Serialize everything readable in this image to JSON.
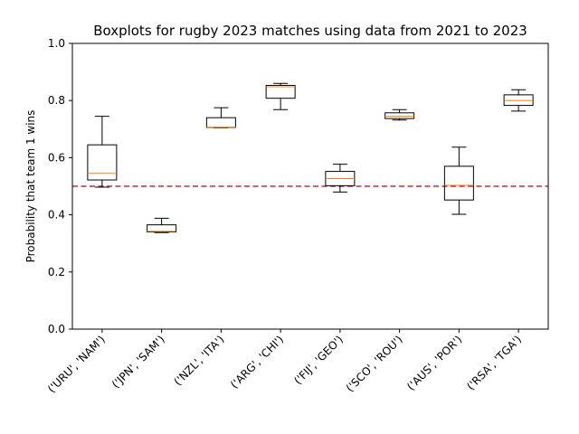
{
  "chart_data": {
    "type": "boxplot",
    "title": "Boxplots for rugby 2023 matches using data from 2021 to 2023",
    "xlabel": "",
    "ylabel": "Probability that team 1 wins",
    "ylim": [
      0.0,
      1.0
    ],
    "yticks": [
      "0.0",
      "0.2",
      "0.4",
      "0.6",
      "0.8",
      "1.0"
    ],
    "categories": [
      "('URU', 'NAM')",
      "('JPN', 'SAM')",
      "('NZL', 'ITA')",
      "('ARG', 'CHI')",
      "('FIJ', 'GEO')",
      "('SCO', 'ROU')",
      "('AUS', 'POR')",
      "('RSA', 'TGA')"
    ],
    "boxes": [
      {
        "whisker_low": 0.497,
        "q1": 0.522,
        "median": 0.545,
        "q3": 0.645,
        "whisker_high": 0.745
      },
      {
        "whisker_low": 0.338,
        "q1": 0.34,
        "median": 0.342,
        "q3": 0.365,
        "whisker_high": 0.388
      },
      {
        "whisker_low": 0.705,
        "q1": 0.706,
        "median": 0.707,
        "q3": 0.74,
        "whisker_high": 0.775
      },
      {
        "whisker_low": 0.768,
        "q1": 0.808,
        "median": 0.848,
        "q3": 0.853,
        "whisker_high": 0.86
      },
      {
        "whisker_low": 0.48,
        "q1": 0.502,
        "median": 0.527,
        "q3": 0.552,
        "whisker_high": 0.577
      },
      {
        "whisker_low": 0.732,
        "q1": 0.737,
        "median": 0.745,
        "q3": 0.757,
        "whisker_high": 0.768
      },
      {
        "whisker_low": 0.402,
        "q1": 0.452,
        "median": 0.503,
        "q3": 0.57,
        "whisker_high": 0.637
      },
      {
        "whisker_low": 0.763,
        "q1": 0.783,
        "median": 0.8,
        "q3": 0.82,
        "whisker_high": 0.838
      }
    ],
    "reference_line": {
      "y": 0.5,
      "style": "dashed",
      "color": "#d62728"
    },
    "colors": {
      "box": "#000000",
      "median": "#ff7f0e"
    }
  }
}
